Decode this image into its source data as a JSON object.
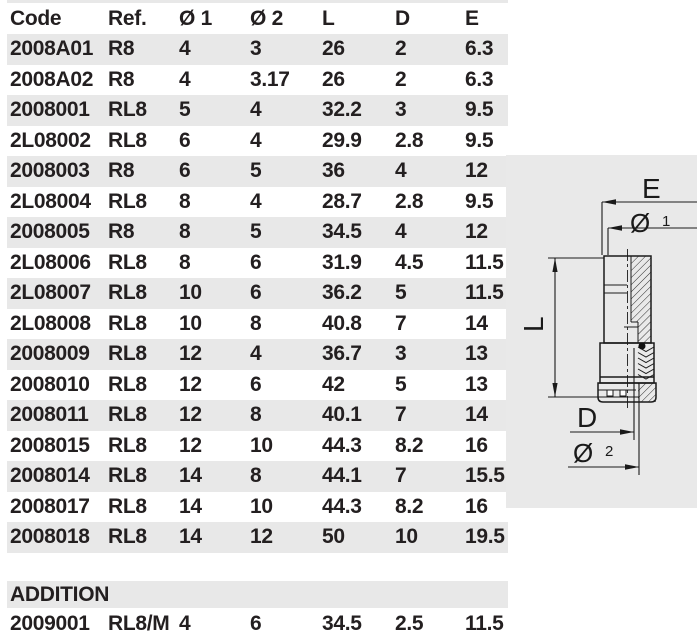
{
  "table": {
    "headers": [
      "Code",
      "Ref.",
      "Ø 1",
      "Ø 2",
      "L",
      "D",
      "E"
    ],
    "rows": [
      [
        "2008A01",
        "R8",
        "4",
        "3",
        "26",
        "2",
        "6.3"
      ],
      [
        "2008A02",
        "R8",
        "4",
        "3.17",
        "26",
        "2",
        "6.3"
      ],
      [
        "2008001",
        "RL8",
        "5",
        "4",
        "32.2",
        "3",
        "9.5"
      ],
      [
        "2L08002",
        "RL8",
        "6",
        "4",
        "29.9",
        "2.8",
        "9.5"
      ],
      [
        "2008003",
        "R8",
        "6",
        "5",
        "36",
        "4",
        "12"
      ],
      [
        "2L08004",
        "RL8",
        "8",
        "4",
        "28.7",
        "2.8",
        "9.5"
      ],
      [
        "2008005",
        "R8",
        "8",
        "5",
        "34.5",
        "4",
        "12"
      ],
      [
        "2L08006",
        "RL8",
        "8",
        "6",
        "31.9",
        "4.5",
        "11.5"
      ],
      [
        "2L08007",
        "RL8",
        "10",
        "6",
        "36.2",
        "5",
        "11.5"
      ],
      [
        "2L08008",
        "RL8",
        "10",
        "8",
        "40.8",
        "7",
        "14"
      ],
      [
        "2008009",
        "RL8",
        "12",
        "4",
        "36.7",
        "3",
        "13"
      ],
      [
        "2008010",
        "RL8",
        "12",
        "6",
        "42",
        "5",
        "13"
      ],
      [
        "2008011",
        "RL8",
        "12",
        "8",
        "40.1",
        "7",
        "14"
      ],
      [
        "2008015",
        "RL8",
        "12",
        "10",
        "44.3",
        "8.2",
        "16"
      ],
      [
        "2008014",
        "RL8",
        "14",
        "8",
        "44.1",
        "7",
        "15.5"
      ],
      [
        "2008017",
        "RL8",
        "14",
        "10",
        "44.3",
        "8.2",
        "16"
      ],
      [
        "2008018",
        "RL8",
        "14",
        "12",
        "50",
        "10",
        "19.5"
      ]
    ],
    "addition_label": "ADDITION",
    "addition_rows": [
      [
        "2009001",
        "RL8/M",
        "4",
        "6",
        "34.5",
        "2.5",
        "11.5"
      ]
    ]
  },
  "diagram": {
    "labels": {
      "e": "E",
      "d1": "Ø",
      "d1_sub": "1",
      "l": "L",
      "d": "D",
      "d2": "Ø",
      "d2_sub": "2"
    }
  },
  "colors": {
    "stripe": "#e8e8e8",
    "panel": "#e9e9e9",
    "text": "#231f20",
    "line": "#1a1a1a"
  }
}
